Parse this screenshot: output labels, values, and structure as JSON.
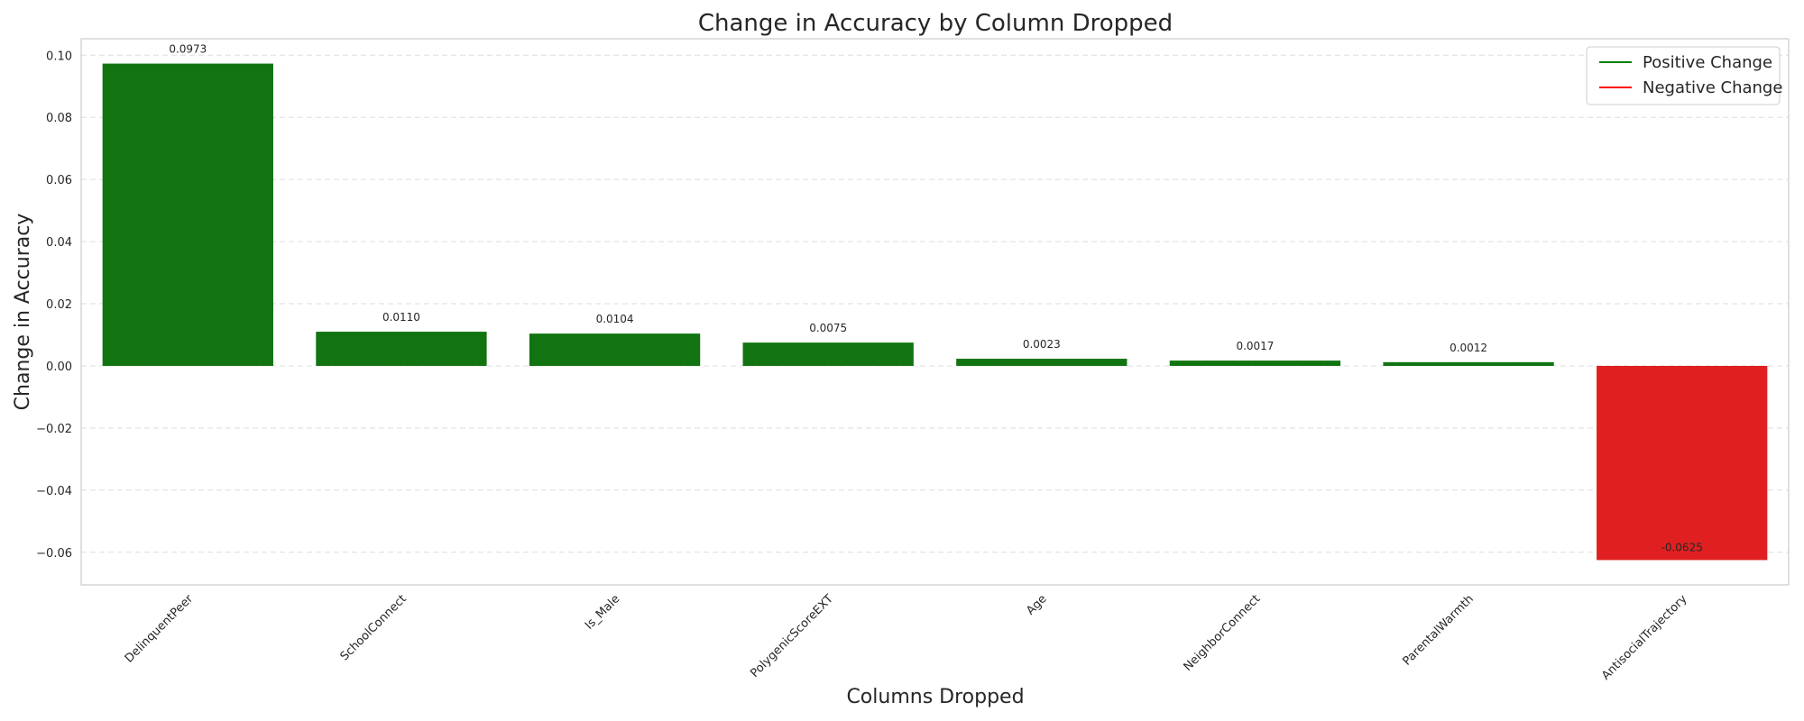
{
  "chart_data": {
    "type": "bar",
    "title": "Change in Accuracy by Column Dropped",
    "xlabel": "Columns Dropped",
    "ylabel": "Change in Accuracy",
    "categories": [
      "DelinquentPeer",
      "SchoolConnect",
      "Is_Male",
      "PolygenicScoreEXT",
      "Age",
      "NeighborConnect",
      "ParentalWarmth",
      "AntisocialTrajectory"
    ],
    "values": [
      0.0973,
      0.011,
      0.0104,
      0.0075,
      0.0023,
      0.0017,
      0.0012,
      -0.0625
    ],
    "value_labels": [
      "0.0973",
      "0.0110",
      "0.0104",
      "0.0075",
      "0.0023",
      "0.0017",
      "0.0012",
      "-0.0625"
    ],
    "ylim": [
      -0.0705,
      0.1053
    ],
    "yticks": [
      -0.06,
      -0.04,
      -0.02,
      0.0,
      0.02,
      0.04,
      0.06,
      0.08,
      0.1
    ],
    "ytick_labels": [
      "−0.06",
      "−0.04",
      "−0.02",
      "0.00",
      "0.02",
      "0.04",
      "0.06",
      "0.08",
      "0.10"
    ],
    "grid": true,
    "legend": {
      "placement": "top-right",
      "entries": [
        {
          "label": "Positive Change",
          "color": "#008000"
        },
        {
          "label": "Negative Change",
          "color": "#ff0000"
        }
      ]
    },
    "colors": {
      "positive": "#117411",
      "negative": "#e02020",
      "grid": "#dddddd",
      "axes_edge": "#cccccc"
    }
  }
}
